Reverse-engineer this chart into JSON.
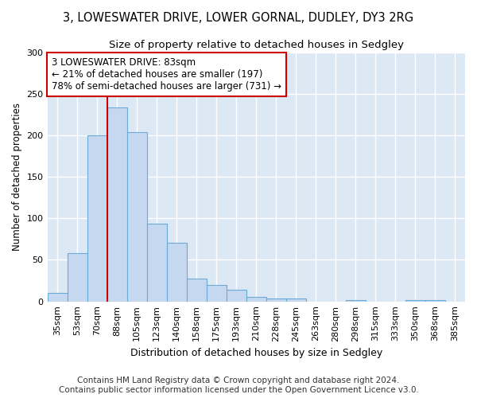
{
  "title1": "3, LOWESWATER DRIVE, LOWER GORNAL, DUDLEY, DY3 2RG",
  "title2": "Size of property relative to detached houses in Sedgley",
  "xlabel": "Distribution of detached houses by size in Sedgley",
  "ylabel": "Number of detached properties",
  "footer1": "Contains HM Land Registry data © Crown copyright and database right 2024.",
  "footer2": "Contains public sector information licensed under the Open Government Licence v3.0.",
  "bar_labels": [
    "35sqm",
    "53sqm",
    "70sqm",
    "88sqm",
    "105sqm",
    "123sqm",
    "140sqm",
    "158sqm",
    "175sqm",
    "193sqm",
    "210sqm",
    "228sqm",
    "245sqm",
    "263sqm",
    "280sqm",
    "298sqm",
    "315sqm",
    "333sqm",
    "350sqm",
    "368sqm",
    "385sqm"
  ],
  "bar_values": [
    10,
    58,
    200,
    233,
    204,
    94,
    71,
    27,
    20,
    14,
    5,
    4,
    4,
    0,
    0,
    2,
    0,
    0,
    2,
    2,
    0
  ],
  "bar_color": "#c5d8f0",
  "bar_edge_color": "#6aaad4",
  "vline_color": "#cc0000",
  "annotation_text": "3 LOWESWATER DRIVE: 83sqm\n← 21% of detached houses are smaller (197)\n78% of semi-detached houses are larger (731) →",
  "annotation_box_color": "#ffffff",
  "annotation_box_edge": "#cc0000",
  "ylim": [
    0,
    300
  ],
  "yticks": [
    0,
    50,
    100,
    150,
    200,
    250,
    300
  ],
  "background_color": "#ffffff",
  "plot_bg_color": "#dde8f5",
  "grid_color": "#ffffff",
  "title1_fontsize": 10.5,
  "title2_fontsize": 9.5,
  "xlabel_fontsize": 9,
  "ylabel_fontsize": 8.5,
  "tick_fontsize": 8,
  "annotation_fontsize": 8.5,
  "footer_fontsize": 7.5
}
